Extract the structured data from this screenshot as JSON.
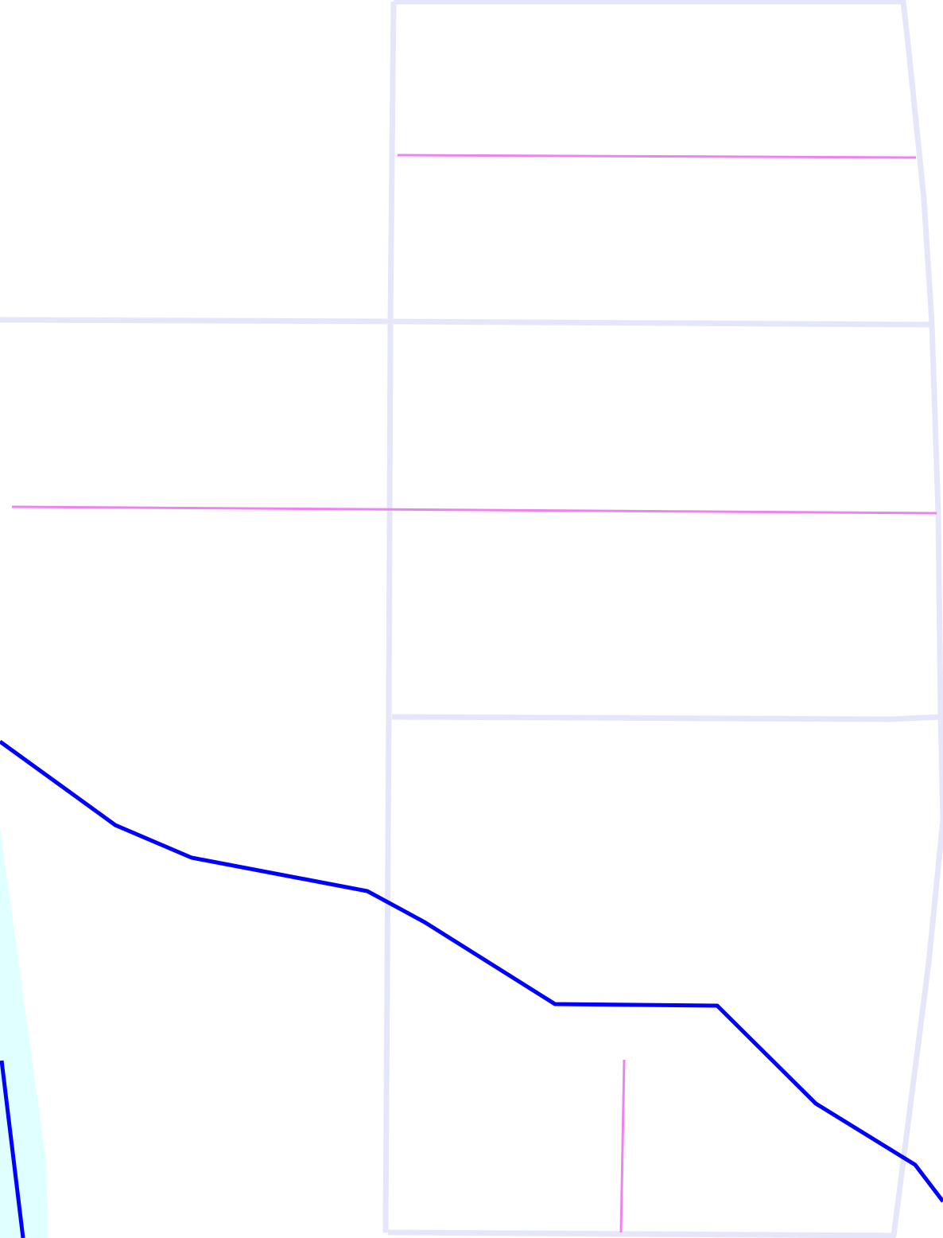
{
  "map": {
    "background_color": "#ffffff",
    "colors": {
      "minor_road": "#e6e6fa",
      "footway": "#ee82ee",
      "waterway": "#0000ff",
      "water_area": "#e0ffff"
    },
    "labels": []
  }
}
